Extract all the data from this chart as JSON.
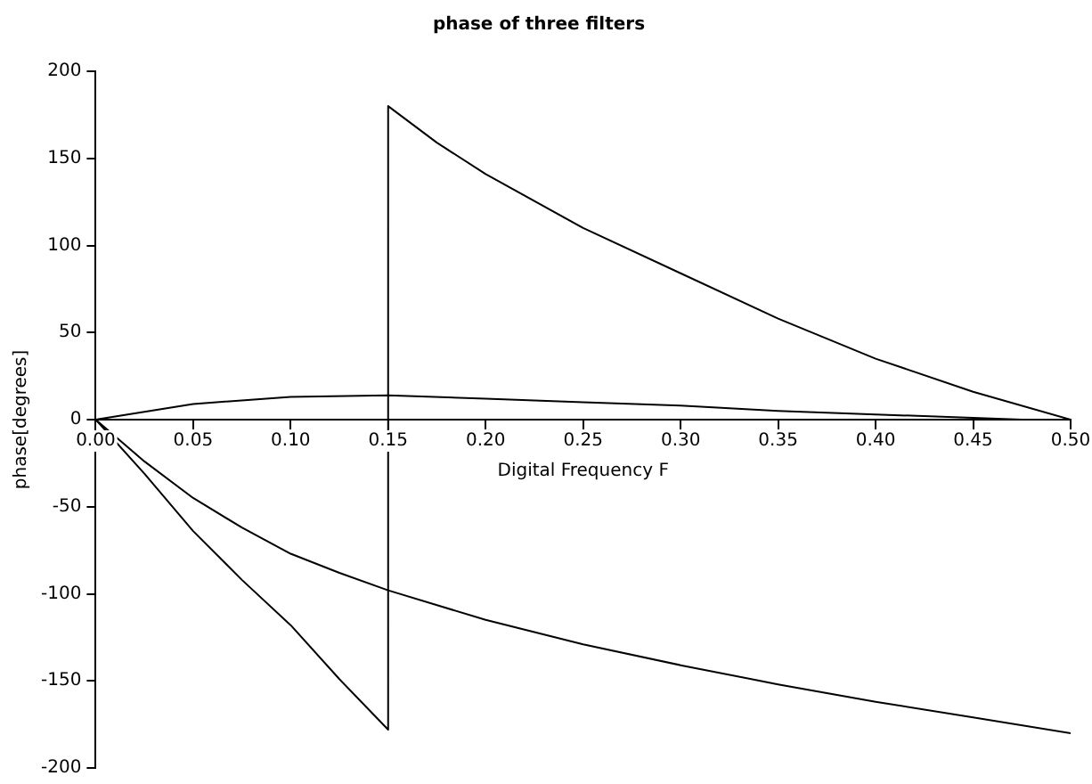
{
  "chart_data": {
    "type": "line",
    "title": "phase of three filters",
    "xlabel": "Digital Frequency F",
    "ylabel": "phase[degrees]",
    "xlim": [
      0,
      0.5
    ],
    "ylim": [
      -200,
      200
    ],
    "xticks": [
      {
        "value": 0,
        "label": "0.00"
      },
      {
        "value": 0.05,
        "label": "0.05"
      },
      {
        "value": 0.1,
        "label": "0.10"
      },
      {
        "value": 0.15,
        "label": "0.15"
      },
      {
        "value": 0.2,
        "label": "0.20"
      },
      {
        "value": 0.25,
        "label": "0.25"
      },
      {
        "value": 0.3,
        "label": "0.30"
      },
      {
        "value": 0.35,
        "label": "0.35"
      },
      {
        "value": 0.4,
        "label": "0.40"
      },
      {
        "value": 0.45,
        "label": "0.45"
      },
      {
        "value": 0.5,
        "label": "0.50"
      }
    ],
    "yticks": [
      -200,
      -150,
      -100,
      -50,
      0,
      50,
      100,
      150,
      200
    ],
    "grid": false,
    "legend": false,
    "marker": "none",
    "line_style": "solid",
    "series": [
      {
        "color": "#000000",
        "x": [
          0,
          0.025,
          0.05,
          0.075,
          0.1,
          0.125,
          0.15,
          0.15,
          0.175,
          0.2,
          0.25,
          0.3,
          0.35,
          0.4,
          0.45,
          0.5
        ],
        "values": [
          0,
          -31,
          -64,
          -92,
          -118,
          -149,
          -178,
          180,
          159,
          141,
          110,
          84,
          58,
          35,
          16,
          0
        ]
      },
      {
        "color": "#000000",
        "x": [
          0,
          0.025,
          0.05,
          0.075,
          0.1,
          0.125,
          0.15,
          0.2,
          0.25,
          0.3,
          0.35,
          0.4,
          0.45,
          0.5
        ],
        "values": [
          0,
          -24,
          -45,
          -62,
          -77,
          -88,
          -98,
          -115,
          -129,
          -141,
          -152,
          -162,
          -171,
          -180
        ]
      },
      {
        "color": "#000000",
        "x": [
          0,
          0.05,
          0.1,
          0.15,
          0.2,
          0.25,
          0.3,
          0.35,
          0.4,
          0.45,
          0.475
        ],
        "values": [
          0,
          9,
          13,
          14,
          12,
          10,
          8,
          5,
          3,
          1,
          0
        ]
      }
    ]
  }
}
